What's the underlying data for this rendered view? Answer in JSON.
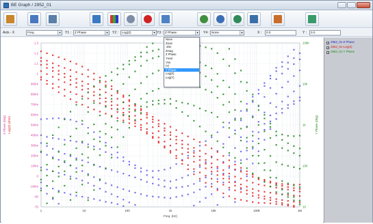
{
  "window": {
    "title": "BE Graph / 2952_01"
  },
  "toolbar": {
    "buttons": [
      {
        "name": "open-icon",
        "color": "#c9862b"
      },
      {
        "name": "document-icon",
        "color": "#4a78c0"
      },
      {
        "name": "print-icon",
        "color": "#5a7fa8"
      },
      {
        "name": "table-view-icon",
        "color": "#3b7ac2"
      },
      {
        "name": "grid-color-icon",
        "color": "#3a6aa6"
      },
      {
        "name": "stop-icon",
        "color": "#7d8da5"
      },
      {
        "name": "record-icon",
        "color": "#d02222"
      },
      {
        "name": "window-icon",
        "color": "#4f82c4"
      },
      {
        "name": "zoom-in-icon",
        "color": "#3f8f3f"
      },
      {
        "name": "zoom-out-icon",
        "color": "#3a6fb5"
      },
      {
        "name": "zoom-fit-icon",
        "color": "#2f8a5a"
      },
      {
        "name": "layout-icon",
        "color": "#3b6ea8"
      },
      {
        "name": "export-icon",
        "color": "#c86d2b"
      },
      {
        "name": "settings-icon",
        "color": "#3a9a6a"
      }
    ]
  },
  "axisbar": {
    "axis_x_label": "Axis - X",
    "x_value": "Freq.",
    "y1_label": "Y1 :",
    "y1_value": "Z Phase",
    "y2_label": "Y2 :",
    "y2_value": "Log(Z)",
    "y3_label": "Y3 :",
    "y3_value": "Z Phase",
    "y4_label": "Y4 :",
    "y4_value": "None",
    "x_min_label": "X :",
    "x_min_value": "0.0",
    "y_min_label": "Y :",
    "y_min_value": "0.0"
  },
  "dropdown": {
    "items": [
      "None",
      "Zreal",
      "-Zim",
      "Zmag",
      "Z Phase",
      "Yreal",
      "Yim",
      "|Y|",
      "Y Phase",
      "Log(Z)",
      "Log(Y)"
    ],
    "selected_index": 8
  },
  "legend": {
    "items": [
      {
        "label": "2952_01-Z Phase",
        "color": "#2323c8"
      },
      {
        "label": "2952_01-Log(Z)",
        "color": "#d62020"
      },
      {
        "label": "2952_01-Y Phase",
        "color": "#1e8a1e"
      }
    ]
  },
  "chart_data": {
    "type": "scatter",
    "xlabel": "Freq. (Hz)",
    "ylabel_left_outer": "Z Phase (deg)",
    "ylabel_left_inner": "Log(Z) (ohm)",
    "ylabel_right": "Y Phase (deg)",
    "x_ticks": [
      "1",
      "10",
      "100",
      "1k",
      "10k",
      "100k",
      "1M"
    ],
    "y_left_ticks": [
      "1.3",
      "1.2",
      "1.1",
      "1",
      "900m",
      "800m",
      "700m",
      "600m",
      "500m",
      "400m",
      "300m",
      "200m",
      "100m",
      "0",
      "-100m",
      "-50",
      "-75"
    ],
    "y_right_ticks": [
      "100k",
      "10k",
      "1k",
      "100",
      "10"
    ],
    "grid": true,
    "colors": {
      "z_phase": "#5a5ae6",
      "log_z": "#e02020",
      "y_phase": "#1e8a1e"
    },
    "series": [
      {
        "name": "2952_01-Z Phase",
        "values": [
          [
            1,
            0.3
          ],
          [
            3,
            0.22
          ],
          [
            10,
            0.12
          ],
          [
            30,
            0.02
          ],
          [
            100,
            -0.05
          ],
          [
            300,
            -0.1
          ],
          [
            1000,
            -0.12
          ],
          [
            3000,
            -0.08
          ],
          [
            10000,
            0.02
          ],
          [
            30000,
            0.2
          ],
          [
            100000,
            0.55
          ],
          [
            300000,
            0.85
          ],
          [
            1000000,
            1.05
          ]
        ]
      },
      {
        "name": "2952_01-Log(Z)",
        "values": [
          [
            1,
            1.1
          ],
          [
            3,
            1.0
          ],
          [
            10,
            0.9
          ],
          [
            30,
            0.8
          ],
          [
            100,
            0.68
          ],
          [
            300,
            0.56
          ],
          [
            1000,
            0.42
          ],
          [
            3000,
            0.28
          ],
          [
            10000,
            0.15
          ],
          [
            30000,
            0.03
          ],
          [
            100000,
            -0.05
          ],
          [
            300000,
            -0.08
          ],
          [
            1000000,
            -0.1
          ]
        ]
      },
      {
        "name": "2952_01-Y Phase",
        "values": [
          [
            1,
            -0.05
          ],
          [
            3,
            0.1
          ],
          [
            10,
            0.3
          ],
          [
            30,
            0.55
          ],
          [
            100,
            0.8
          ],
          [
            300,
            1.0
          ],
          [
            1000,
            1.1
          ],
          [
            3000,
            1.08
          ],
          [
            10000,
            0.95
          ],
          [
            30000,
            0.7
          ],
          [
            100000,
            0.4
          ],
          [
            300000,
            0.2
          ],
          [
            1000000,
            0.15
          ]
        ]
      }
    ],
    "band_count": 7
  }
}
